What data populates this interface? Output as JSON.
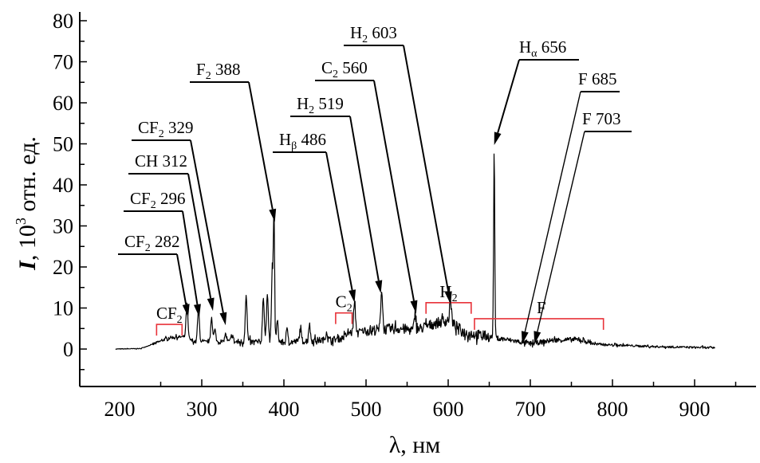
{
  "chart_data": {
    "type": "line",
    "title": "",
    "xlabel": "λ, нм",
    "ylabel": {
      "symbol": "I",
      "rest": ", 10",
      "sup": "3",
      "units": " отн. ед."
    },
    "xlim": [
      150,
      975
    ],
    "ylim": [
      -9,
      83
    ],
    "x_ticks": [
      200,
      300,
      400,
      500,
      600,
      700,
      800,
      900
    ],
    "y_ticks": [
      0,
      10,
      20,
      30,
      40,
      50,
      60,
      70,
      80
    ],
    "grid": false,
    "series": [
      {
        "name": "spectrum",
        "x_range": [
          195,
          925
        ],
        "baseline": [
          [
            195,
            0
          ],
          [
            225,
            0.1
          ],
          [
            245,
            1.5
          ],
          [
            260,
            2.8
          ],
          [
            280,
            3
          ],
          [
            290,
            1.8
          ],
          [
            400,
            1.6
          ],
          [
            470,
            2.5
          ],
          [
            480,
            4
          ],
          [
            500,
            4.5
          ],
          [
            540,
            5
          ],
          [
            560,
            4.5
          ],
          [
            580,
            6
          ],
          [
            600,
            7
          ],
          [
            620,
            4
          ],
          [
            650,
            3
          ],
          [
            680,
            2
          ],
          [
            700,
            1.3
          ],
          [
            730,
            2.2
          ],
          [
            760,
            2.3
          ],
          [
            780,
            1.2
          ],
          [
            800,
            1
          ],
          [
            850,
            0.6
          ],
          [
            925,
            0.3
          ]
        ],
        "peaks": [
          [
            282,
            8
          ],
          [
            296,
            8
          ],
          [
            312,
            6
          ],
          [
            316,
            3
          ],
          [
            329,
            2
          ],
          [
            337,
            2
          ],
          [
            354,
            11.5
          ],
          [
            375,
            11
          ],
          [
            380,
            12
          ],
          [
            386,
            18
          ],
          [
            388,
            29
          ],
          [
            392,
            5
          ],
          [
            404,
            3
          ],
          [
            420,
            3
          ],
          [
            431,
            4
          ],
          [
            452,
            2
          ],
          [
            486,
            7
          ],
          [
            519,
            10
          ],
          [
            560,
            5
          ],
          [
            603,
            5
          ],
          [
            656,
            46
          ]
        ]
      }
    ],
    "annotations": [
      {
        "main": "CF",
        "sub": "2",
        "rest": " 282",
        "x": 283.5,
        "y": 7.8
      },
      {
        "main": "CF",
        "sub": "2",
        "rest": " 296",
        "x": 297,
        "y": 7.8
      },
      {
        "main": "CH",
        "sub": "",
        "rest": " 312",
        "x": 313.6,
        "y": 9.3
      },
      {
        "main": "CF",
        "sub": "2",
        "rest": " 329",
        "x": 329,
        "y": 5.8
      },
      {
        "main": "F",
        "sub": "2",
        "rest": " 388",
        "x": 389,
        "y": 31
      },
      {
        "main": "H",
        "sub": "β",
        "rest": " 486",
        "x": 486,
        "y": 11.3
      },
      {
        "main": "H",
        "sub": "2",
        "rest": " 519",
        "x": 518,
        "y": 13.6
      },
      {
        "main": "C",
        "sub": "2",
        "rest": " 560",
        "x": 561,
        "y": 8.7
      },
      {
        "main": "H",
        "sub": "2",
        "rest": " 603",
        "x": 603,
        "y": 10.9
      },
      {
        "main": "H",
        "sub": "α",
        "rest": " 656",
        "x": 656,
        "y": 49.7
      },
      {
        "main": "F",
        "sub": "",
        "rest": " 685",
        "x": 690,
        "y": 1.2
      },
      {
        "main": "F",
        "sub": "",
        "rest": " 703",
        "x": 705,
        "y": 1.2
      }
    ],
    "bands": [
      {
        "main": "CF",
        "sub": "2",
        "from": 245,
        "to": 276,
        "level": 6
      },
      {
        "main": "C",
        "sub": "2",
        "from": 463,
        "to": 483,
        "level": 8.8
      },
      {
        "main": "H",
        "sub": "2",
        "from": 573,
        "to": 628,
        "level": 11.3
      },
      {
        "main": "F",
        "sub": "",
        "from": 632,
        "to": 789,
        "level": 7.4
      }
    ],
    "band_color": "#e8333a"
  }
}
